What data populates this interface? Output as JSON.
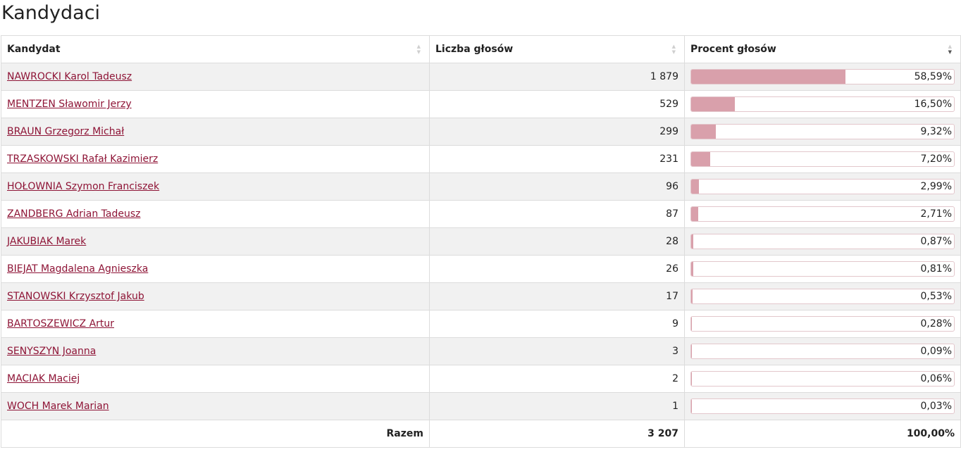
{
  "page": {
    "title": "Kandydaci"
  },
  "table": {
    "headers": [
      "Kandydat",
      "Liczba głosów",
      "Procent głosów"
    ],
    "rows": [
      {
        "name": "NAWROCKI Karol Tadeusz",
        "votes": "1 879",
        "percent": "58,59%",
        "pct": 58.59
      },
      {
        "name": "MENTZEN Sławomir Jerzy",
        "votes": "529",
        "percent": "16,50%",
        "pct": 16.5
      },
      {
        "name": "BRAUN Grzegorz Michał",
        "votes": "299",
        "percent": "9,32%",
        "pct": 9.32
      },
      {
        "name": "TRZASKOWSKI Rafał Kazimierz",
        "votes": "231",
        "percent": "7,20%",
        "pct": 7.2
      },
      {
        "name": "HOŁOWNIA Szymon Franciszek",
        "votes": "96",
        "percent": "2,99%",
        "pct": 2.99
      },
      {
        "name": "ZANDBERG Adrian Tadeusz",
        "votes": "87",
        "percent": "2,71%",
        "pct": 2.71
      },
      {
        "name": "JAKUBIAK Marek",
        "votes": "28",
        "percent": "0,87%",
        "pct": 0.87
      },
      {
        "name": "BIEJAT Magdalena Agnieszka",
        "votes": "26",
        "percent": "0,81%",
        "pct": 0.81
      },
      {
        "name": "STANOWSKI Krzysztof Jakub",
        "votes": "17",
        "percent": "0,53%",
        "pct": 0.53
      },
      {
        "name": "BARTOSZEWICZ Artur",
        "votes": "9",
        "percent": "0,28%",
        "pct": 0.28
      },
      {
        "name": "SENYSZYN Joanna",
        "votes": "3",
        "percent": "0,09%",
        "pct": 0.09
      },
      {
        "name": "MACIAK Maciej",
        "votes": "2",
        "percent": "0,06%",
        "pct": 0.06
      },
      {
        "name": "WOCH Marek Marian",
        "votes": "1",
        "percent": "0,03%",
        "pct": 0.03
      }
    ],
    "footer": {
      "label": "Razem",
      "votes": "3 207",
      "percent": "100,00%"
    }
  },
  "colors": {
    "link": "#8e1436",
    "bar_fill": "#d9a0ab",
    "row_alt": "#f1f1f1"
  },
  "icons": {
    "sort": "sort-arrows-icon",
    "sort_desc": "sort-desc-icon"
  }
}
